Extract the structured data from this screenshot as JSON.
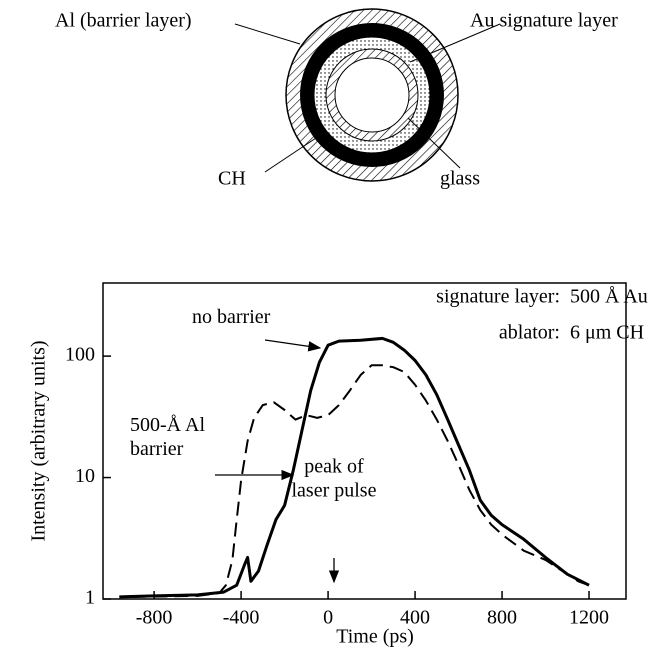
{
  "diagram": {
    "labels": [
      "Al (barrier layer)",
      "Au signature layer",
      "CH",
      "glass"
    ]
  },
  "chart_data": {
    "type": "line",
    "x_label": "Time (ps)",
    "y_label": "Intensity (arbitrary units)",
    "annotations": [
      [
        "signature layer:",
        "500 Å Au"
      ],
      [
        "ablator:",
        "6 μm CH"
      ],
      [
        "peak of",
        "laser pulse"
      ]
    ],
    "log_y": true,
    "xlim": [
      -1035,
      1370
    ],
    "xticks": [
      -800,
      -400,
      0,
      400,
      800,
      1200
    ],
    "ylim": [
      1,
      400
    ],
    "yticks": [
      1,
      10,
      100
    ],
    "series": [
      {
        "name": "no barrier",
        "color": "#000000",
        "dash": false,
        "x": [
          -960,
          -800,
          -600,
          -480,
          -420,
          -385,
          -370,
          -355,
          -320,
          -280,
          -240,
          -200,
          -160,
          -120,
          -80,
          -40,
          0,
          50,
          150,
          250,
          300,
          350,
          400,
          450,
          500,
          550,
          600,
          650,
          700,
          750,
          800,
          900,
          1000,
          1100,
          1200
        ],
        "values": [
          1.04,
          1.06,
          1.08,
          1.14,
          1.3,
          1.9,
          2.2,
          1.4,
          1.7,
          2.8,
          4.5,
          5.9,
          11.5,
          24.5,
          52,
          89,
          123,
          133,
          135,
          140,
          130,
          112,
          92,
          70,
          48,
          30,
          18.5,
          11.5,
          6.5,
          4.9,
          4.1,
          3.1,
          2.2,
          1.6,
          1.3
        ]
      },
      {
        "name": "500-Å Al barrier",
        "color": "#000000",
        "dash": true,
        "x": [
          -900,
          -600,
          -500,
          -470,
          -440,
          -420,
          -400,
          -370,
          -340,
          -300,
          -250,
          -200,
          -150,
          -100,
          -50,
          0,
          50,
          100,
          150,
          200,
          250,
          300,
          350,
          400,
          450,
          500,
          550,
          600,
          650,
          700,
          750,
          800,
          900,
          1000,
          1100,
          1150,
          1200
        ],
        "values": [
          1.04,
          1.06,
          1.12,
          1.3,
          2.1,
          4.5,
          9.5,
          20,
          31,
          39.5,
          41.7,
          36,
          30,
          32.7,
          31,
          32.7,
          39.5,
          52,
          70,
          84,
          84,
          81,
          74,
          58,
          43,
          30,
          20,
          12.7,
          7.9,
          5.4,
          4.1,
          3.4,
          2.5,
          2.1,
          1.6,
          1.4,
          1.3
        ]
      }
    ]
  }
}
